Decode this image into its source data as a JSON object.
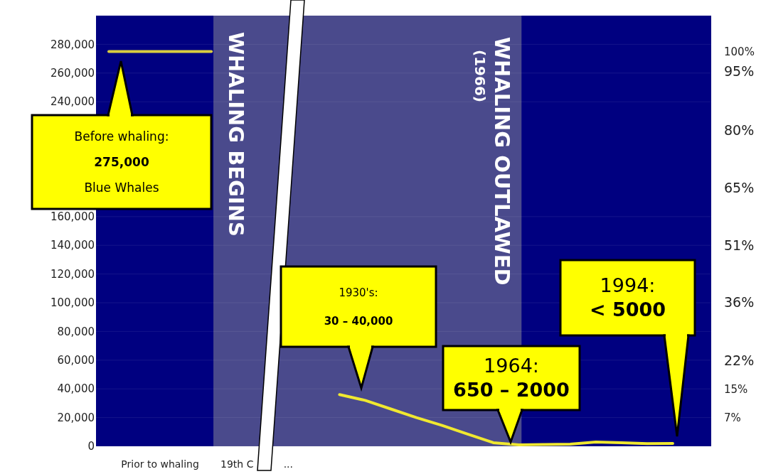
{
  "chart_data": {
    "type": "line",
    "categories": [
      null,
      null,
      "Prior to whaling",
      null,
      null,
      "19th C",
      null,
      "...",
      null,
      null,
      null,
      null,
      null,
      null,
      null,
      null,
      null,
      null,
      null,
      null,
      null,
      null,
      null,
      null
    ],
    "series": [
      {
        "color": "#d8cc40",
        "values": [
          275000,
          275000,
          275000,
          275000,
          275000,
          null,
          null,
          null,
          null,
          null,
          null,
          null,
          null,
          null,
          null,
          null,
          null,
          null,
          null,
          null,
          null,
          null,
          null,
          null
        ]
      },
      {
        "color": "#f0e830",
        "values": [
          null,
          null,
          null,
          null,
          null,
          null,
          null,
          null,
          null,
          36000,
          32000,
          26000,
          20000,
          14500,
          8500,
          2500,
          1000,
          1200,
          1500,
          3000,
          2500,
          1800,
          2000,
          null
        ]
      }
    ],
    "ylim": [
      0,
      300000
    ],
    "yticks": [
      {
        "value": 0,
        "label": "0"
      },
      {
        "value": 20000,
        "label": "20,000"
      },
      {
        "value": 40000,
        "label": "40,000"
      },
      {
        "value": 60000,
        "label": "60,000"
      },
      {
        "value": 80000,
        "label": "80,000"
      },
      {
        "value": 100000,
        "label": "100,000"
      },
      {
        "value": 120000,
        "label": "120,000"
      },
      {
        "value": 140000,
        "label": "140,000"
      },
      {
        "value": 160000,
        "label": "160,000"
      },
      {
        "value": 240000,
        "label": "240,000"
      },
      {
        "value": 260000,
        "label": "260,000"
      },
      {
        "value": 280000,
        "label": "280,000"
      }
    ],
    "y2lim": [
      0,
      109.1
    ],
    "y2ticks": [
      {
        "value": 7.3,
        "label": "7%"
      },
      {
        "value": 14.5,
        "label": "15%"
      },
      {
        "value": 21.8,
        "label": "22%"
      },
      {
        "value": 36.4,
        "label": "36%"
      },
      {
        "value": 50.9,
        "label": "51%"
      },
      {
        "value": 65.46,
        "label": "65%"
      },
      {
        "value": 80,
        "label": "80%"
      },
      {
        "value": 95,
        "label": "95%"
      },
      {
        "value": 100,
        "label": "100%"
      }
    ],
    "grid": "y",
    "annotations": [
      "Before whaling:\n275,000\nBlue Whales",
      "1930's:\n30 – 40,000",
      "1964:\n650 – 2000",
      "1994:\n< 5000",
      "WHALING OUTLAWED\n(1966)",
      "WHALING BEGINS"
    ]
  }
}
